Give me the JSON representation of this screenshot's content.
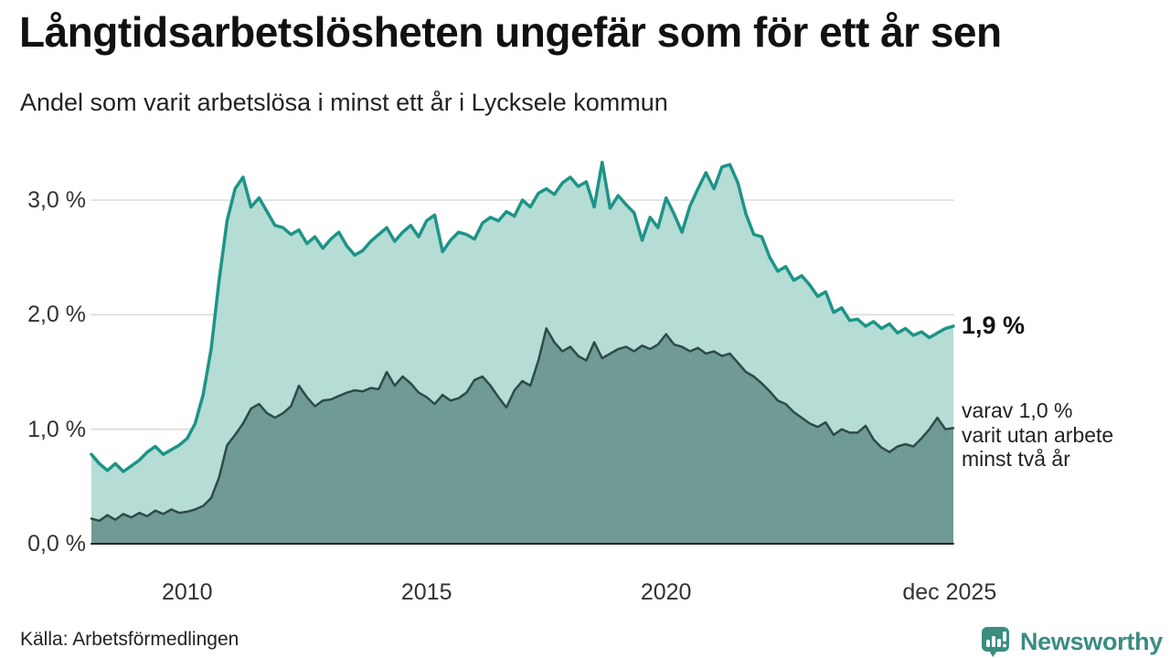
{
  "header": {
    "title": "Långtidsarbetslösheten ungefär som för ett år sen",
    "subtitle": "Andel som varit arbetslösa i minst ett år i Lycksele kommun"
  },
  "chart_data": {
    "type": "area",
    "title": "Långtidsarbetslösheten ungefär som för ett år sen",
    "subtitle": "Andel som varit arbetslösa i minst ett år i Lycksele kommun",
    "unit": "%",
    "x_start": 2008.0,
    "x_step": 0.166667,
    "xlim": [
      2008.0,
      2026.0
    ],
    "ylim": [
      0,
      3.5
    ],
    "grid": true,
    "x_ticks": [
      {
        "year": 2010.0,
        "label": "2010"
      },
      {
        "year": 2015.0,
        "label": "2015"
      },
      {
        "year": 2020.0,
        "label": "2020"
      },
      {
        "year": 2025.92,
        "label": "dec 2025"
      }
    ],
    "y_ticks": [
      {
        "value": 3.0,
        "label": "3,0 %"
      },
      {
        "value": 2.0,
        "label": "2,0 %"
      },
      {
        "value": 1.0,
        "label": "1,0 %"
      },
      {
        "value": 0.0,
        "label": "0,0 %"
      }
    ],
    "series": [
      {
        "name": "arbetslösa minst ett år",
        "line_color": "#1d9488",
        "fill_color": "#b5dcd5",
        "end_value": "1,9 %",
        "values": [
          0.78,
          0.7,
          0.64,
          0.7,
          0.63,
          0.68,
          0.73,
          0.8,
          0.85,
          0.78,
          0.82,
          0.86,
          0.92,
          1.05,
          1.3,
          1.7,
          2.3,
          2.82,
          3.1,
          3.2,
          2.94,
          3.02,
          2.9,
          2.78,
          2.76,
          2.7,
          2.74,
          2.62,
          2.68,
          2.58,
          2.66,
          2.72,
          2.6,
          2.52,
          2.56,
          2.64,
          2.7,
          2.76,
          2.64,
          2.72,
          2.78,
          2.68,
          2.82,
          2.87,
          2.55,
          2.65,
          2.72,
          2.7,
          2.66,
          2.8,
          2.85,
          2.82,
          2.9,
          2.86,
          3.0,
          2.94,
          3.06,
          3.1,
          3.05,
          3.15,
          3.2,
          3.12,
          3.16,
          2.94,
          3.33,
          2.93,
          3.04,
          2.96,
          2.89,
          2.65,
          2.85,
          2.76,
          3.02,
          2.88,
          2.72,
          2.95,
          3.1,
          3.24,
          3.1,
          3.29,
          3.31,
          3.15,
          2.88,
          2.7,
          2.68,
          2.5,
          2.38,
          2.42,
          2.3,
          2.34,
          2.26,
          2.16,
          2.2,
          2.02,
          2.06,
          1.95,
          1.96,
          1.9,
          1.94,
          1.88,
          1.92,
          1.84,
          1.88,
          1.82,
          1.85,
          1.8,
          1.84,
          1.88,
          1.9
        ]
      },
      {
        "name": "varav utan arbete minst två år",
        "line_color": "#2d4b48",
        "fill_color": "#709a94",
        "end_value": "1,0 %",
        "values": [
          0.22,
          0.2,
          0.25,
          0.21,
          0.26,
          0.23,
          0.27,
          0.24,
          0.29,
          0.26,
          0.3,
          0.27,
          0.28,
          0.3,
          0.33,
          0.4,
          0.58,
          0.86,
          0.95,
          1.05,
          1.18,
          1.22,
          1.14,
          1.1,
          1.14,
          1.2,
          1.38,
          1.28,
          1.2,
          1.25,
          1.26,
          1.29,
          1.32,
          1.34,
          1.33,
          1.36,
          1.35,
          1.5,
          1.38,
          1.46,
          1.4,
          1.32,
          1.28,
          1.22,
          1.3,
          1.25,
          1.27,
          1.32,
          1.43,
          1.46,
          1.38,
          1.28,
          1.19,
          1.34,
          1.42,
          1.38,
          1.6,
          1.88,
          1.76,
          1.68,
          1.72,
          1.64,
          1.6,
          1.76,
          1.62,
          1.66,
          1.7,
          1.72,
          1.68,
          1.73,
          1.7,
          1.74,
          1.83,
          1.74,
          1.72,
          1.68,
          1.71,
          1.66,
          1.68,
          1.64,
          1.66,
          1.58,
          1.5,
          1.46,
          1.4,
          1.33,
          1.25,
          1.22,
          1.15,
          1.1,
          1.05,
          1.02,
          1.06,
          0.95,
          1.0,
          0.97,
          0.97,
          1.03,
          0.91,
          0.84,
          0.8,
          0.85,
          0.87,
          0.85,
          0.92,
          1.0,
          1.1,
          1.0,
          1.01
        ]
      }
    ],
    "annotations": {
      "end_label": "1,9 %",
      "sub_label_lines": [
        "varav 1,0 %",
        "varit utan arbete",
        "minst två år"
      ]
    },
    "colors": {
      "gridline": "#dcdcdc",
      "baseline": "#222222"
    },
    "legend_position": "none"
  },
  "footer": {
    "source": "Källa: Arbetsförmedlingen",
    "brand": "Newsworthy",
    "brand_color": "#3a8d80",
    "brand_icon": "bar-chart-speech-bubble"
  }
}
